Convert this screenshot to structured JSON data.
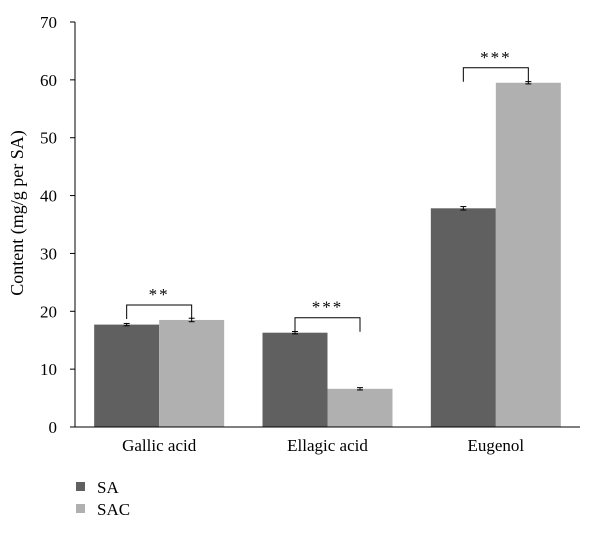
{
  "chart_data": {
    "type": "bar",
    "title": "",
    "xlabel": "",
    "ylabel": "Content (mg/g per SA)",
    "ylim": [
      0,
      70
    ],
    "yticks": [
      0,
      10,
      20,
      30,
      40,
      50,
      60,
      70
    ],
    "grid": false,
    "legend_position": "bottom-left",
    "categories": [
      "Gallic acid",
      "Ellagic acid",
      "Eugenol"
    ],
    "series": [
      {
        "name": "SA",
        "color": "#606060",
        "values": [
          17.7,
          16.3,
          37.8
        ],
        "errors": [
          0.2,
          0.2,
          0.3
        ]
      },
      {
        "name": "SAC",
        "color": "#b0b0b0",
        "values": [
          18.5,
          6.6,
          59.5
        ],
        "errors": [
          0.3,
          0.2,
          0.2
        ]
      }
    ],
    "significance": [
      "**",
      "***",
      "***"
    ]
  }
}
